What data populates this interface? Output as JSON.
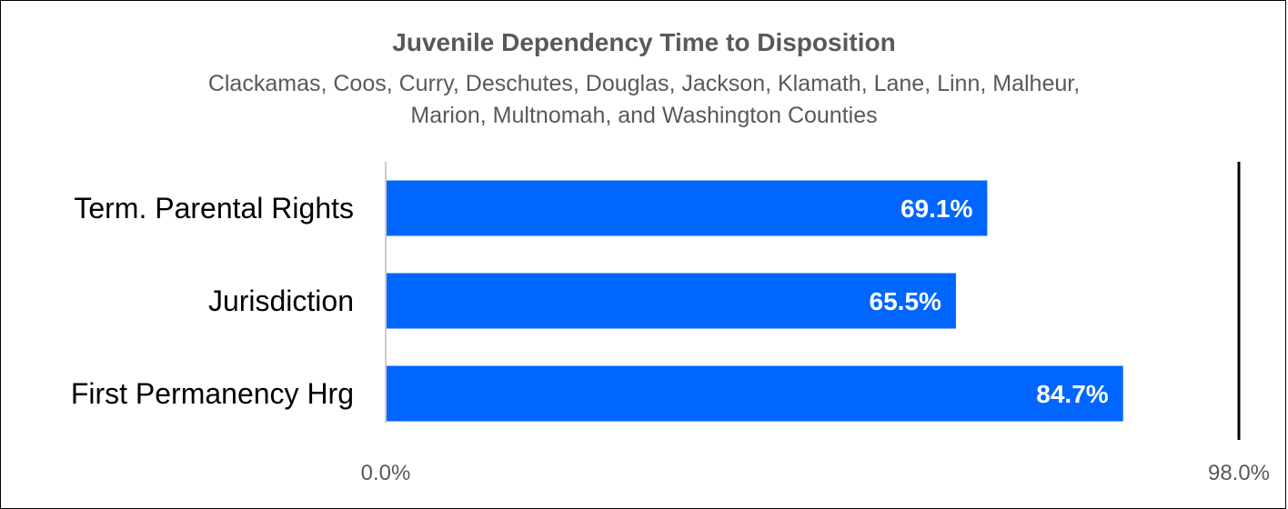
{
  "chart_data": {
    "type": "bar",
    "orientation": "horizontal",
    "title": "Juvenile Dependency Time to Disposition",
    "subtitle": "Clackamas, Coos, Curry, Deschutes, Douglas, Jackson, Klamath, Lane, Linn, Malheur, Marion, Multnomah, and Washington Counties",
    "categories": [
      "Term. Parental Rights",
      "Jurisdiction",
      "First Permanency Hrg"
    ],
    "values": [
      69.1,
      65.5,
      84.7
    ],
    "value_labels": [
      "69.1%",
      "65.5%",
      "84.7%"
    ],
    "xlim": [
      0,
      98.0
    ],
    "x_tick_labels": [
      "0.0%",
      "98.0%"
    ],
    "bar_color": "#0066ff",
    "data_label_color": "#ffffff",
    "target_line_color": "#000000"
  }
}
